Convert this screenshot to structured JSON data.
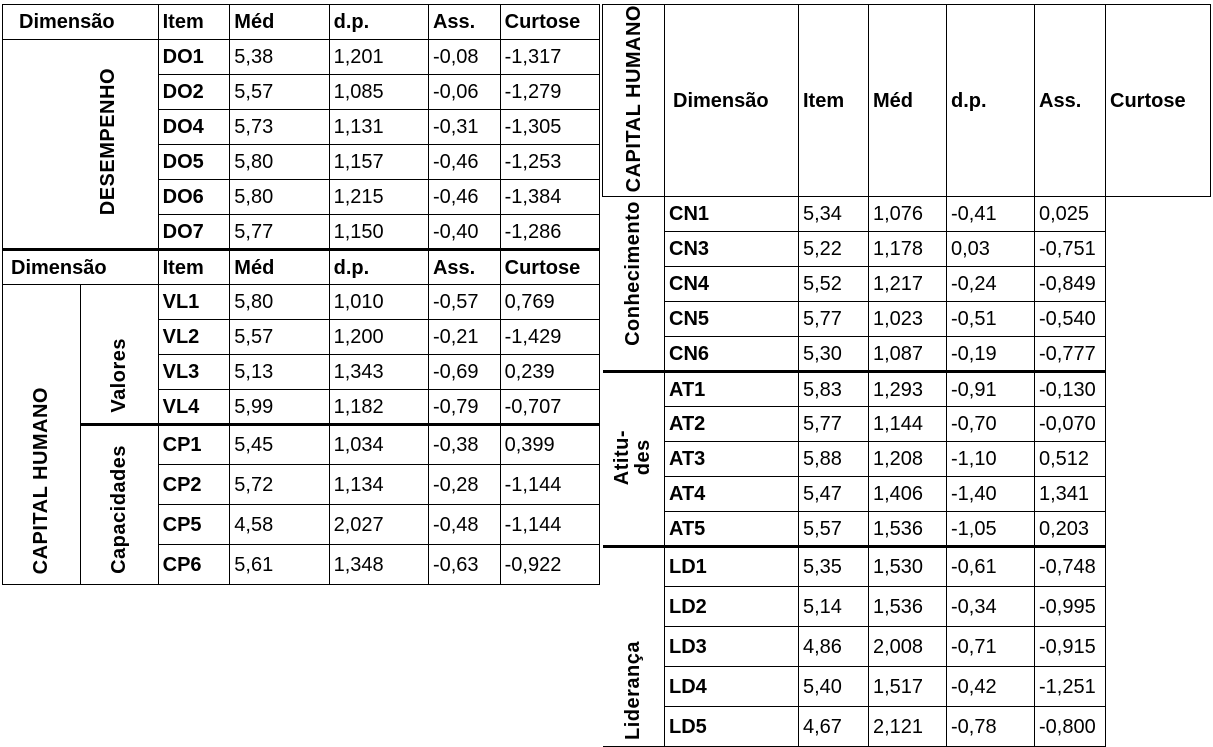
{
  "left_table": {
    "header": {
      "dimension": "Dimensão",
      "item": "Item",
      "mean": "Méd",
      "sd": "d.p.",
      "skew": "Ass.",
      "kurt": "Curtose"
    },
    "group1_label": "DESEMPENHO",
    "group1_rows": [
      {
        "item": "DO1",
        "mean": "5,38",
        "sd": "1,201",
        "skew": "-0,08",
        "kurt": "-1,317"
      },
      {
        "item": "DO2",
        "mean": "5,57",
        "sd": "1,085",
        "skew": "-0,06",
        "kurt": "-1,279"
      },
      {
        "item": "DO4",
        "mean": "5,73",
        "sd": "1,131",
        "skew": "-0,31",
        "kurt": "-1,305"
      },
      {
        "item": "DO5",
        "mean": "5,80",
        "sd": "1,157",
        "skew": "-0,46",
        "kurt": "-1,253"
      },
      {
        "item": "DO6",
        "mean": "5,80",
        "sd": "1,215",
        "skew": "-0,46",
        "kurt": "-1,384"
      },
      {
        "item": "DO7",
        "mean": "5,77",
        "sd": "1,150",
        "skew": "-0,40",
        "kurt": "-1,286"
      }
    ],
    "header2": {
      "dimension": "Dimensão",
      "item": "Item",
      "mean": "Méd",
      "sd": "d.p.",
      "skew": "Ass.",
      "kurt": "Curtose"
    },
    "group2_label": "CAPITAL  HUMANO",
    "sub1_label": "Valores",
    "sub1_rows": [
      {
        "item": "VL1",
        "mean": "5,80",
        "sd": "1,010",
        "skew": "-0,57",
        "kurt": "0,769"
      },
      {
        "item": "VL2",
        "mean": "5,57",
        "sd": "1,200",
        "skew": "-0,21",
        "kurt": "-1,429"
      },
      {
        "item": "VL3",
        "mean": "5,13",
        "sd": "1,343",
        "skew": "-0,69",
        "kurt": "0,239"
      },
      {
        "item": "VL4",
        "mean": "5,99",
        "sd": "1,182",
        "skew": "-0,79",
        "kurt": "-0,707"
      }
    ],
    "sub2_label": "Capacidades",
    "sub2_rows": [
      {
        "item": "CP1",
        "mean": "5,45",
        "sd": "1,034",
        "skew": "-0,38",
        "kurt": "0,399"
      },
      {
        "item": "CP2",
        "mean": "5,72",
        "sd": "1,134",
        "skew": "-0,28",
        "kurt": "-1,144"
      },
      {
        "item": "CP5",
        "mean": "4,58",
        "sd": "2,027",
        "skew": "-0,48",
        "kurt": "-1,144"
      },
      {
        "item": "CP6",
        "mean": "5,61",
        "sd": "1,348",
        "skew": "-0,63",
        "kurt": "-0,922"
      }
    ]
  },
  "right_table": {
    "outer_label": "CAPITAL HUMANO",
    "header": {
      "dimension": "Dimensão",
      "item": "Item",
      "mean": "Méd",
      "sd": "d.p.",
      "skew": "Ass.",
      "kurt": "Curtose"
    },
    "sub1_label": "Conhecimento",
    "sub1_rows": [
      {
        "item": "CN1",
        "mean": "5,34",
        "sd": "1,076",
        "skew": "-0,41",
        "kurt": "0,025"
      },
      {
        "item": "CN3",
        "mean": "5,22",
        "sd": "1,178",
        "skew": "0,03",
        "kurt": "-0,751"
      },
      {
        "item": "CN4",
        "mean": "5,52",
        "sd": "1,217",
        "skew": "-0,24",
        "kurt": "-0,849"
      },
      {
        "item": "CN5",
        "mean": "5,77",
        "sd": "1,023",
        "skew": "-0,51",
        "kurt": "-0,540"
      },
      {
        "item": "CN6",
        "mean": "5,30",
        "sd": "1,087",
        "skew": "-0,19",
        "kurt": "-0,777"
      }
    ],
    "sub2_label": "Atitu- des",
    "sub2_rows": [
      {
        "item": "AT1",
        "mean": "5,83",
        "sd": "1,293",
        "skew": "-0,91",
        "kurt": "-0,130"
      },
      {
        "item": "AT2",
        "mean": "5,77",
        "sd": "1,144",
        "skew": "-0,70",
        "kurt": "-0,070"
      },
      {
        "item": "AT3",
        "mean": "5,88",
        "sd": "1,208",
        "skew": "-1,10",
        "kurt": "0,512"
      },
      {
        "item": "AT4",
        "mean": "5,47",
        "sd": "1,406",
        "skew": "-1,40",
        "kurt": "1,341"
      },
      {
        "item": "AT5",
        "mean": "5,57",
        "sd": "1,536",
        "skew": "-1,05",
        "kurt": "0,203"
      }
    ],
    "sub3_label": "Liderança",
    "sub3_rows": [
      {
        "item": "LD1",
        "mean": "5,35",
        "sd": "1,530",
        "skew": "-0,61",
        "kurt": "-0,748"
      },
      {
        "item": "LD2",
        "mean": "5,14",
        "sd": "1,536",
        "skew": "-0,34",
        "kurt": "-0,995"
      },
      {
        "item": "LD3",
        "mean": "4,86",
        "sd": "2,008",
        "skew": "-0,71",
        "kurt": "-0,915"
      },
      {
        "item": "LD4",
        "mean": "5,40",
        "sd": "1,517",
        "skew": "-0,42",
        "kurt": "-1,251"
      },
      {
        "item": "LD5",
        "mean": "4,67",
        "sd": "2,121",
        "skew": "-0,78",
        "kurt": "-0,800"
      }
    ]
  }
}
